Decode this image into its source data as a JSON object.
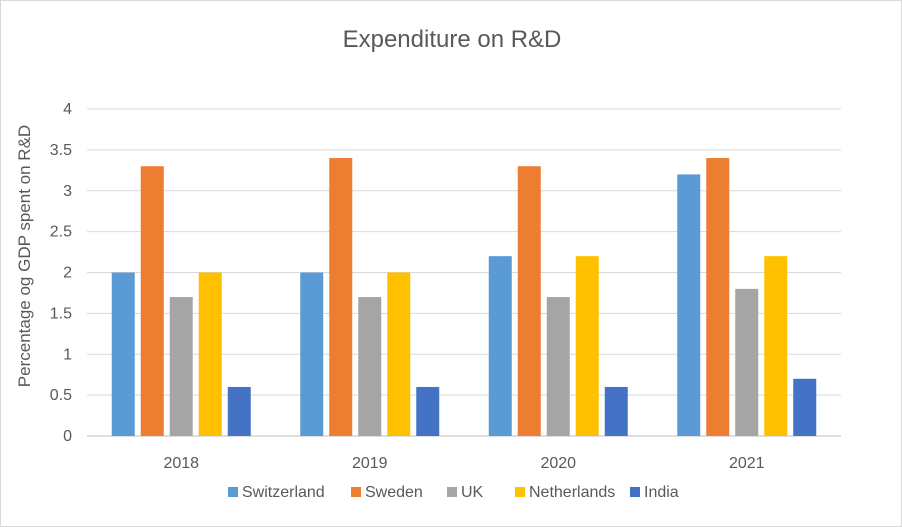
{
  "chart_data": {
    "type": "bar",
    "title": "Expenditure on R&D",
    "xlabel": "",
    "ylabel": "Percentage og GDP spent on R&D",
    "categories": [
      "2018",
      "2019",
      "2020",
      "2021"
    ],
    "series": [
      {
        "name": "Switzerland",
        "values": [
          2.0,
          2.0,
          2.2,
          3.2
        ],
        "color": "#5b9bd5"
      },
      {
        "name": "Sweden",
        "values": [
          3.3,
          3.4,
          3.3,
          3.4
        ],
        "color": "#ed7d31"
      },
      {
        "name": "UK",
        "values": [
          1.7,
          1.7,
          1.7,
          1.8
        ],
        "color": "#a5a5a5"
      },
      {
        "name": "Netherlands",
        "values": [
          2.0,
          2.0,
          2.2,
          2.2
        ],
        "color": "#ffc000"
      },
      {
        "name": "India",
        "values": [
          0.6,
          0.6,
          0.6,
          0.7
        ],
        "color": "#4472c4"
      }
    ],
    "ylim": [
      0,
      4
    ],
    "yticks": [
      "0",
      "0.5",
      "1",
      "1.5",
      "2",
      "2.5",
      "3",
      "3.5",
      "4"
    ],
    "grid": true,
    "legend_position": "bottom"
  }
}
